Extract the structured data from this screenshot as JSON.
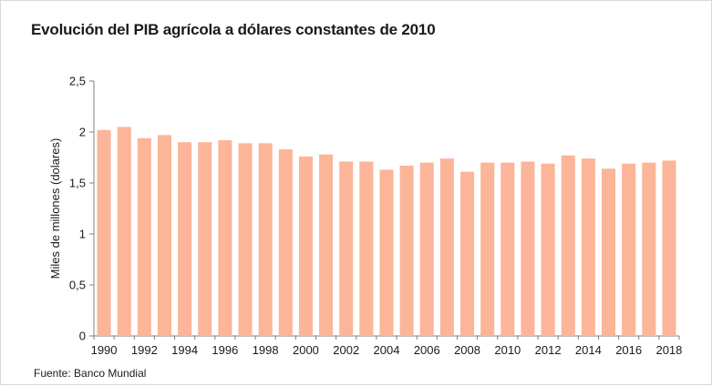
{
  "title": "Evolución del PIB agrícola a dólares constantes de 2010",
  "source": "Fuente: Banco Mundial",
  "chart_data": {
    "type": "bar",
    "title": "Evolución del PIB agrícola a dólares constantes de 2010",
    "xlabel": "",
    "ylabel": "Miles de millones (dolares)",
    "ylim": [
      0,
      2.5
    ],
    "yticks": [
      "0",
      "0,5",
      "1",
      "1,5",
      "2",
      "2,5"
    ],
    "ytick_values": [
      0,
      0.5,
      1,
      1.5,
      2,
      2.5
    ],
    "grid": false,
    "bar_color": "#fcb598",
    "categories": [
      "1990",
      "1991",
      "1992",
      "1993",
      "1994",
      "1995",
      "1996",
      "1997",
      "1998",
      "1999",
      "2000",
      "2001",
      "2002",
      "2003",
      "2004",
      "2005",
      "2006",
      "2007",
      "2008",
      "2009",
      "2010",
      "2011",
      "2012",
      "2013",
      "2014",
      "2015",
      "2016",
      "2017",
      "2018"
    ],
    "xtick_labels": [
      "1990",
      "1992",
      "1994",
      "1996",
      "1998",
      "2000",
      "2002",
      "2004",
      "2006",
      "2008",
      "2010",
      "2012",
      "2014",
      "2016",
      "2018"
    ],
    "values": [
      2.02,
      2.05,
      1.94,
      1.97,
      1.9,
      1.9,
      1.92,
      1.89,
      1.89,
      1.83,
      1.76,
      1.78,
      1.71,
      1.71,
      1.63,
      1.67,
      1.7,
      1.74,
      1.61,
      1.7,
      1.7,
      1.71,
      1.69,
      1.77,
      1.74,
      1.64,
      1.69,
      1.7,
      1.72
    ]
  }
}
